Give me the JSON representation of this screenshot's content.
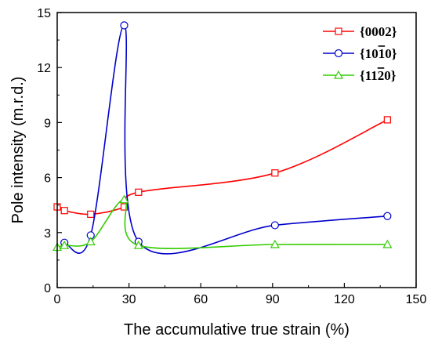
{
  "chart_data": {
    "type": "line",
    "xlabel": "The accumulative true strain (%)",
    "ylabel": "Pole intensity (m.r.d.)",
    "xlim": [
      0,
      150
    ],
    "ylim": [
      0,
      15
    ],
    "xticks": [
      "0",
      "30",
      "60",
      "90",
      "120",
      "150"
    ],
    "yticks": [
      "0",
      "3",
      "6",
      "9",
      "12",
      "15"
    ],
    "grid": false,
    "legend_position": "top-right",
    "series": [
      {
        "name": "{0002}",
        "name_parts": {
          "pre": "{000",
          "bar": "",
          "post": "2}"
        },
        "color": "#ff0000",
        "marker": "square",
        "x": [
          0,
          3,
          14,
          28,
          34,
          91,
          138
        ],
        "y": [
          4.4,
          4.2,
          4.0,
          4.4,
          5.2,
          6.25,
          9.15
        ]
      },
      {
        "name": "{1010}",
        "name_parts": {
          "pre": "{10",
          "bar": "1",
          "post": "0}"
        },
        "color": "#0000cc",
        "marker": "circle",
        "x": [
          3,
          14,
          28,
          34,
          91,
          138
        ],
        "y": [
          2.45,
          2.85,
          14.3,
          2.5,
          3.4,
          3.9
        ]
      },
      {
        "name": "{1120}",
        "name_parts": {
          "pre": "{11",
          "bar": "2",
          "post": "0}"
        },
        "color": "#33cc00",
        "marker": "triangle",
        "x": [
          0,
          3,
          14,
          28,
          34,
          91,
          138
        ],
        "y": [
          2.2,
          2.3,
          2.5,
          4.8,
          2.3,
          2.35,
          2.35
        ]
      }
    ]
  }
}
